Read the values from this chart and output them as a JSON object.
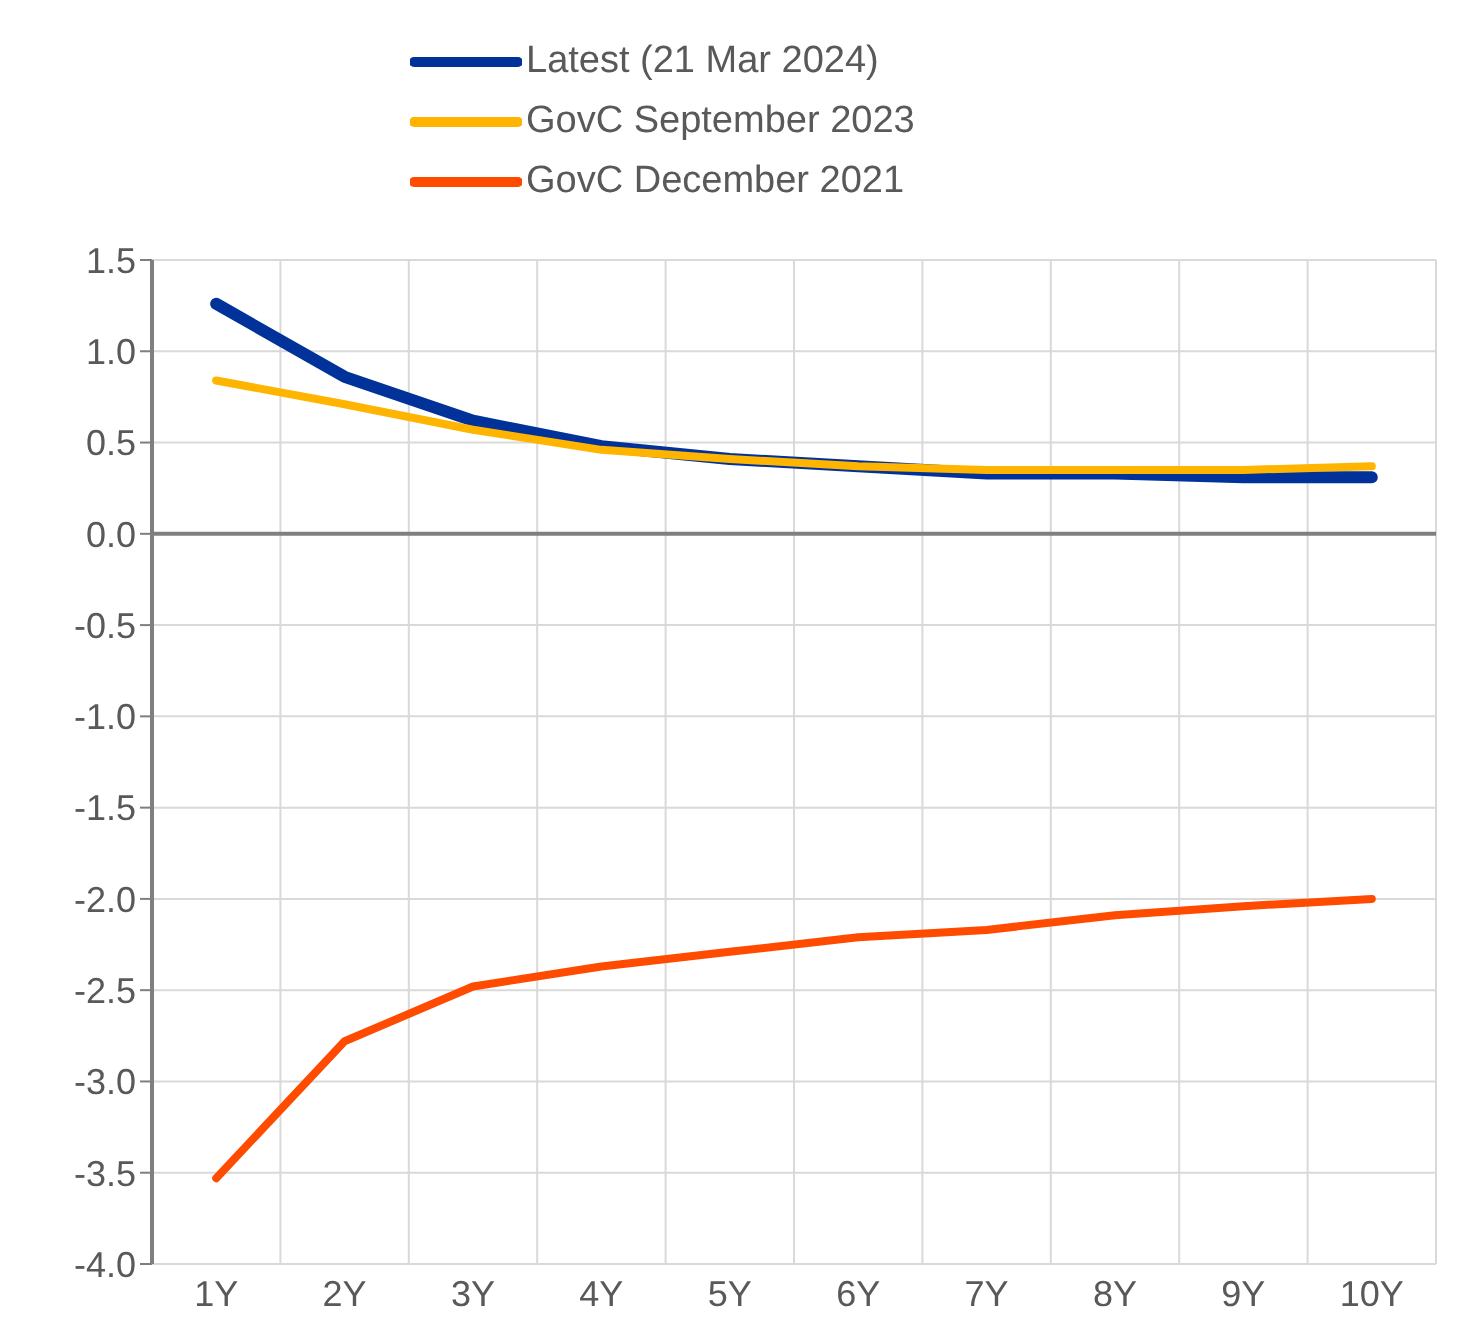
{
  "chart_data": {
    "type": "line",
    "categories": [
      "1Y",
      "2Y",
      "3Y",
      "4Y",
      "5Y",
      "6Y",
      "7Y",
      "8Y",
      "9Y",
      "10Y"
    ],
    "series": [
      {
        "name": "Latest (21 Mar 2024)",
        "color": "#003299",
        "values": [
          1.26,
          0.86,
          0.62,
          0.48,
          0.41,
          0.37,
          0.33,
          0.33,
          0.31,
          0.31
        ]
      },
      {
        "name": "GovC September 2023",
        "color": "#ffb400",
        "values": [
          0.84,
          0.71,
          0.57,
          0.46,
          0.41,
          0.37,
          0.35,
          0.35,
          0.35,
          0.37
        ]
      },
      {
        "name": "GovC December 2021",
        "color": "#ff4b00",
        "values": [
          -3.53,
          -2.78,
          -2.48,
          -2.37,
          -2.29,
          -2.21,
          -2.17,
          -2.09,
          -2.04,
          -2.0
        ]
      }
    ],
    "ylim": [
      -4.0,
      1.5
    ],
    "yticks": [
      {
        "value": -4,
        "label": "-4.0"
      },
      {
        "value": -3.5,
        "label": "-3.5"
      },
      {
        "value": -3,
        "label": "-3.0"
      },
      {
        "value": -2.5,
        "label": "-2.5"
      },
      {
        "value": -2,
        "label": "-2.0"
      },
      {
        "value": -1.5,
        "label": "-1.5"
      },
      {
        "value": -1,
        "label": "-1.0"
      },
      {
        "value": -0.5,
        "label": "-0.5"
      },
      {
        "value": 0,
        "label": "0.0"
      },
      {
        "value": 0.5,
        "label": "0.5"
      },
      {
        "value": 1,
        "label": "1.0"
      },
      {
        "value": 1.5,
        "label": "1.5"
      }
    ],
    "grid": true,
    "legend": "top",
    "marker": "none",
    "line_style": "solid"
  }
}
